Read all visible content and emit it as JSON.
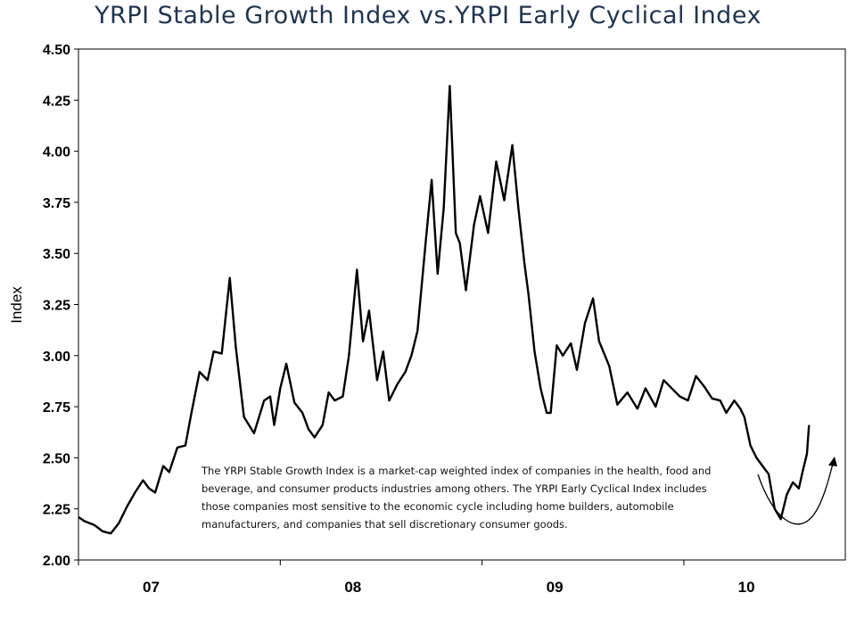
{
  "title": "YRPI Stable Growth Index vs.YRPI Early Cyclical Index",
  "note": "The YRPI Stable Growth Index is a market-cap weighted index of companies in the health, food and beverage, and consumer products industries among others. The YRPI Early Cyclical Index includes those companies most sensitive to the economic cycle including home builders, automobile manufacturers, and companies that sell discretionary consumer goods.",
  "chart_data": {
    "type": "line",
    "title": "YRPI Stable Growth Index vs.YRPI Early Cyclical Index",
    "xlabel": "",
    "ylabel": "Index",
    "ylim": [
      2.0,
      4.5
    ],
    "yticks": [
      "2.00",
      "2.25",
      "2.50",
      "2.75",
      "3.00",
      "3.25",
      "3.50",
      "3.75",
      "4.00",
      "4.25",
      "4.50"
    ],
    "xlim": [
      2006.5,
      2010.3
    ],
    "xtick_labels": [
      {
        "label": "07",
        "x": 2006.86
      },
      {
        "label": "08",
        "x": 2007.86
      },
      {
        "label": "09",
        "x": 2008.86
      },
      {
        "label": "10",
        "x": 2009.81
      }
    ],
    "xtick_marks": [
      2006.5,
      2007.5,
      2008.5,
      2009.5
    ],
    "grid": false,
    "line_color": "#000000",
    "series": [
      {
        "x": [
          2006.5,
          2006.53,
          2006.58,
          2006.62,
          2006.66,
          2006.7,
          2006.74,
          2006.78,
          2006.82,
          2006.85,
          2006.88,
          2006.92,
          2006.95,
          2006.99,
          2007.03,
          2007.06,
          2007.1,
          2007.14,
          2007.17,
          2007.21,
          2007.25,
          2007.28,
          2007.32,
          2007.37,
          2007.42,
          2007.45,
          2007.47,
          2007.5,
          2007.53,
          2007.57,
          2007.61,
          2007.64,
          2007.67,
          2007.71,
          2007.74,
          2007.77,
          2007.81,
          2007.84,
          2007.88,
          2007.91,
          2007.94,
          2007.98,
          2008.01,
          2008.04,
          2008.08,
          2008.12,
          2008.15,
          2008.18,
          2008.22,
          2008.25,
          2008.28,
          2008.31,
          2008.34,
          2008.37,
          2008.39,
          2008.42,
          2008.46,
          2008.49,
          2008.53,
          2008.57,
          2008.61,
          2008.65,
          2008.68,
          2008.71,
          2008.73,
          2008.76,
          2008.79,
          2008.82,
          2008.84,
          2008.87,
          2008.9,
          2008.94,
          2008.97,
          2009.01,
          2009.05,
          2009.08,
          2009.13,
          2009.17,
          2009.22,
          2009.27,
          2009.31,
          2009.36,
          2009.4,
          2009.45,
          2009.48,
          2009.52,
          2009.56,
          2009.6,
          2009.64,
          2009.68,
          2009.71,
          2009.75,
          2009.78,
          2009.8,
          2009.83,
          2009.86,
          2009.89,
          2009.92,
          2009.95,
          2009.98,
          2010.01,
          2010.04,
          2010.07,
          2010.09,
          2010.11,
          2010.12
        ],
        "y": [
          2.21,
          2.19,
          2.17,
          2.14,
          2.13,
          2.18,
          2.26,
          2.33,
          2.39,
          2.35,
          2.33,
          2.46,
          2.43,
          2.55,
          2.56,
          2.72,
          2.92,
          2.88,
          3.02,
          3.01,
          3.38,
          3.04,
          2.7,
          2.62,
          2.78,
          2.8,
          2.66,
          2.84,
          2.96,
          2.77,
          2.72,
          2.64,
          2.6,
          2.66,
          2.82,
          2.78,
          2.8,
          3.0,
          3.42,
          3.07,
          3.22,
          2.88,
          3.02,
          2.78,
          2.86,
          2.92,
          3.0,
          3.12,
          3.55,
          3.86,
          3.4,
          3.72,
          4.32,
          3.6,
          3.55,
          3.32,
          3.64,
          3.78,
          3.6,
          3.95,
          3.76,
          4.03,
          3.72,
          3.45,
          3.3,
          3.02,
          2.84,
          2.72,
          2.72,
          3.05,
          3.0,
          3.06,
          2.93,
          3.16,
          3.28,
          3.07,
          2.95,
          2.76,
          2.82,
          2.74,
          2.84,
          2.75,
          2.88,
          2.83,
          2.8,
          2.78,
          2.9,
          2.85,
          2.79,
          2.78,
          2.72,
          2.78,
          2.74,
          2.7,
          2.56,
          2.5,
          2.46,
          2.42,
          2.25,
          2.2,
          2.32,
          2.38,
          2.35,
          2.44,
          2.52,
          2.66
        ]
      }
    ],
    "annotation": "upward arrow curve near end of 2009 / early 2010"
  }
}
